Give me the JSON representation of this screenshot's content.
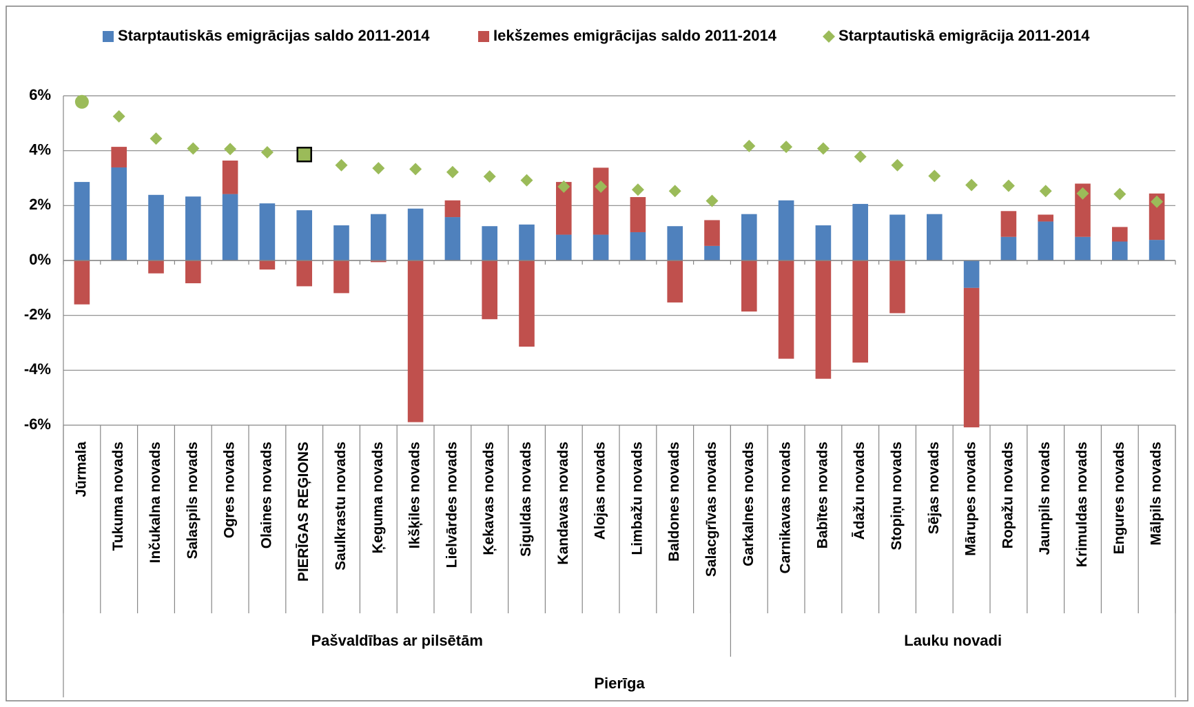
{
  "chart_data": {
    "type": "bar",
    "stacked": true,
    "categories": [
      "Jūrmala",
      "Tukuma novads",
      "Inčukalna novads",
      "Salaspils novads",
      "Ogres novads",
      "Olaines novads",
      "PIERĪGAS REĢIONS",
      "Saulkrastu novads",
      "Ķeguma novads",
      "Ikšķiles novads",
      "Lielvārdes novads",
      "Ķekavas novads",
      "Siguldas novads",
      "Kandavas novads",
      "Alojas novads",
      "Limbažu novads",
      "Baldones novads",
      "Salacgrīvas novads",
      "Garkalnes novads",
      "Carnikavas novads",
      "Babītes novads",
      "Ādažu novads",
      "Stopiņu novads",
      "Sējas novads",
      "Mārupes novads",
      "Ropažu novads",
      "Jaunpils novads",
      "Krimuldas novads",
      "Engures novads",
      "Mālpils novads"
    ],
    "groups": [
      {
        "label": "Pašvaldības ar pilsētām",
        "size": 18
      },
      {
        "label": "Lauku novadi",
        "size": 12
      }
    ],
    "supergroup": "Pierīga",
    "series": [
      {
        "name": "Starptautiskās emigrācijas saldo 2011-2014",
        "color": "#4f81bd",
        "type": "bar",
        "values": [
          2.86,
          3.39,
          2.39,
          2.33,
          2.42,
          2.08,
          1.83,
          1.28,
          1.69,
          1.89,
          1.58,
          1.25,
          1.31,
          0.94,
          0.94,
          1.03,
          1.25,
          0.53,
          1.69,
          2.19,
          1.28,
          2.06,
          1.67,
          1.69,
          -1.0,
          0.86,
          1.42,
          0.86,
          0.69,
          0.75
        ]
      },
      {
        "name": "Iekšzemes emigrācijas saldo 2011-2014",
        "color": "#c0504d",
        "type": "bar",
        "values": [
          -1.6,
          0.75,
          -0.47,
          -0.83,
          1.22,
          -0.33,
          -0.94,
          -1.19,
          -0.06,
          -5.89,
          0.61,
          -2.14,
          -3.14,
          1.92,
          2.44,
          1.28,
          -1.53,
          0.94,
          -1.86,
          -3.58,
          -4.31,
          -3.72,
          -1.92,
          0,
          -5.08,
          0.94,
          0.25,
          1.94,
          0.53,
          1.69
        ]
      },
      {
        "name": "Starptautiskā emigrācija 2011-2014",
        "color": "#9bbb59",
        "type": "scatter",
        "values": [
          5.78,
          5.25,
          4.44,
          4.08,
          4.06,
          3.94,
          3.86,
          3.47,
          3.36,
          3.33,
          3.22,
          3.06,
          2.92,
          2.69,
          2.69,
          2.58,
          2.53,
          2.17,
          4.17,
          4.14,
          4.08,
          3.78,
          3.47,
          3.08,
          2.75,
          2.72,
          2.53,
          2.44,
          2.42,
          2.14
        ],
        "special_markers": [
          {
            "index": 0,
            "shape": "circle"
          },
          {
            "index": 6,
            "shape": "square"
          }
        ]
      }
    ],
    "ylim": [
      -6,
      6
    ],
    "yticks": [
      {
        "value": -6,
        "label": "-6%"
      },
      {
        "value": -4,
        "label": "-4%"
      },
      {
        "value": -2,
        "label": "-2%"
      },
      {
        "value": 0,
        "label": "0%"
      },
      {
        "value": 2,
        "label": "2%"
      },
      {
        "value": 4,
        "label": "4%"
      },
      {
        "value": 6,
        "label": "6%"
      }
    ],
    "grid": true,
    "legend": "top"
  }
}
